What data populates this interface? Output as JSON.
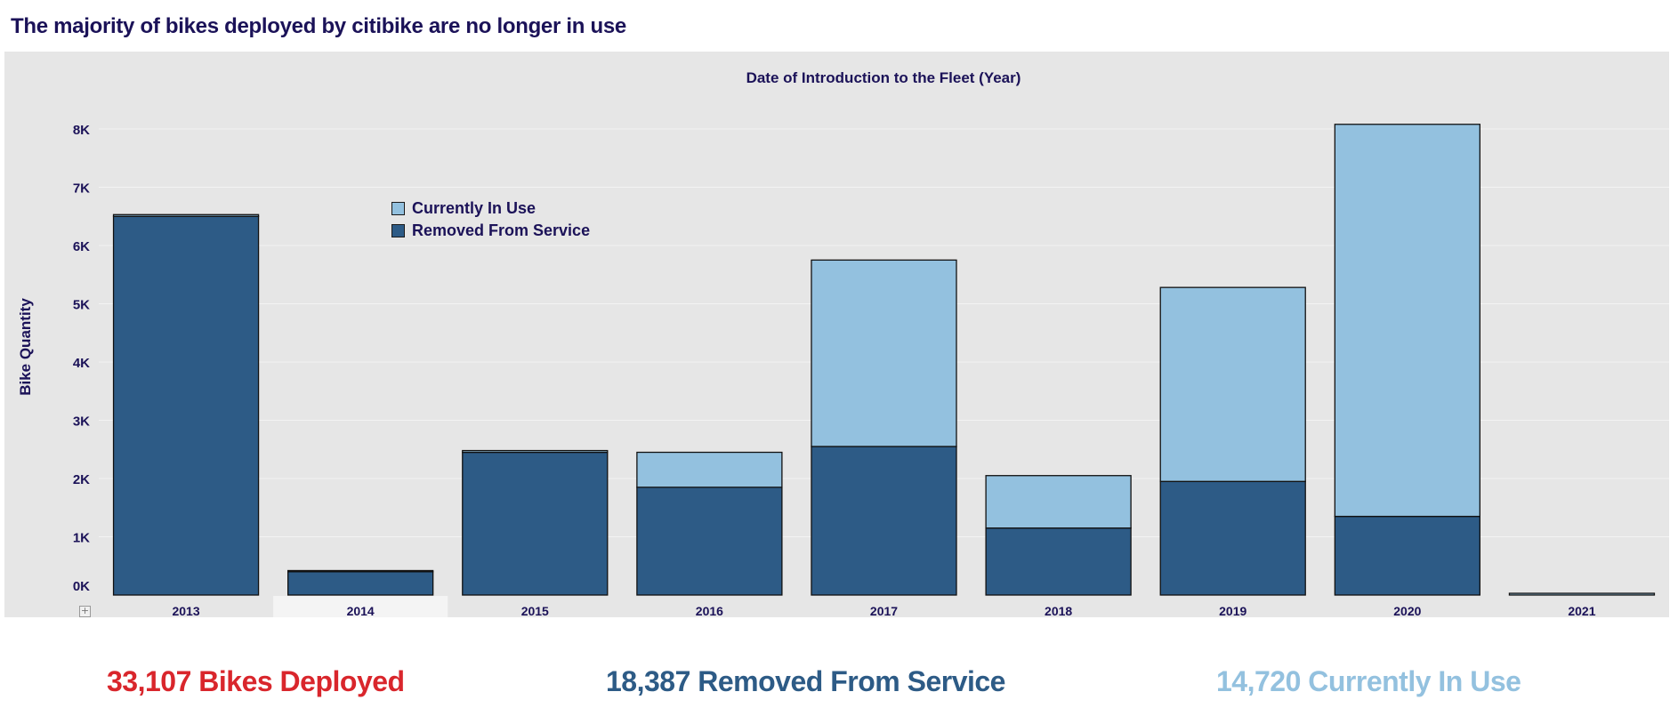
{
  "page": {
    "title": "The majority of bikes deployed by citibike are no longer in use"
  },
  "summary": {
    "deployed": {
      "number": "33,107",
      "label": "Bikes Deployed"
    },
    "removed": {
      "number": "18,387",
      "label": "Removed From Service"
    },
    "in_use": {
      "number": "14,720",
      "label": "Currently In Use"
    }
  },
  "icons": {
    "expand": "plus-square-icon",
    "expand_glyph": "+"
  },
  "colors": {
    "removed": "#2d5b86",
    "in_use": "#93c1df",
    "deployed_text": "#d9262c",
    "panel_background": "#e6e6e6",
    "text": "#1b1258"
  },
  "chart_data": {
    "type": "bar",
    "stacked": true,
    "title": "Date of Introduction to the Fleet (Year)",
    "xlabel": "",
    "ylabel": "Bike Quantity",
    "categories": [
      "2013",
      "2014",
      "2015",
      "2016",
      "2017",
      "2018",
      "2019",
      "2020",
      "2021"
    ],
    "series": [
      {
        "name": "Removed From Service",
        "color": "#2d5b86",
        "values": [
          6500,
          400,
          2450,
          1850,
          2550,
          1150,
          1950,
          1350,
          0
        ]
      },
      {
        "name": "Currently In Use",
        "color": "#93c1df",
        "values": [
          30,
          20,
          30,
          600,
          3200,
          900,
          3330,
          6730,
          30
        ]
      }
    ],
    "yticks": [
      0,
      1000,
      2000,
      3000,
      4000,
      5000,
      6000,
      7000,
      8000
    ],
    "ytick_labels": [
      "0K",
      "1K",
      "2K",
      "3K",
      "4K",
      "5K",
      "6K",
      "7K",
      "8K"
    ],
    "ylim": [
      0,
      8000
    ],
    "highlighted_category": "2014",
    "grid": true,
    "legend": {
      "position": "top-left",
      "entries": [
        "Currently In Use",
        "Removed From Service"
      ]
    }
  }
}
